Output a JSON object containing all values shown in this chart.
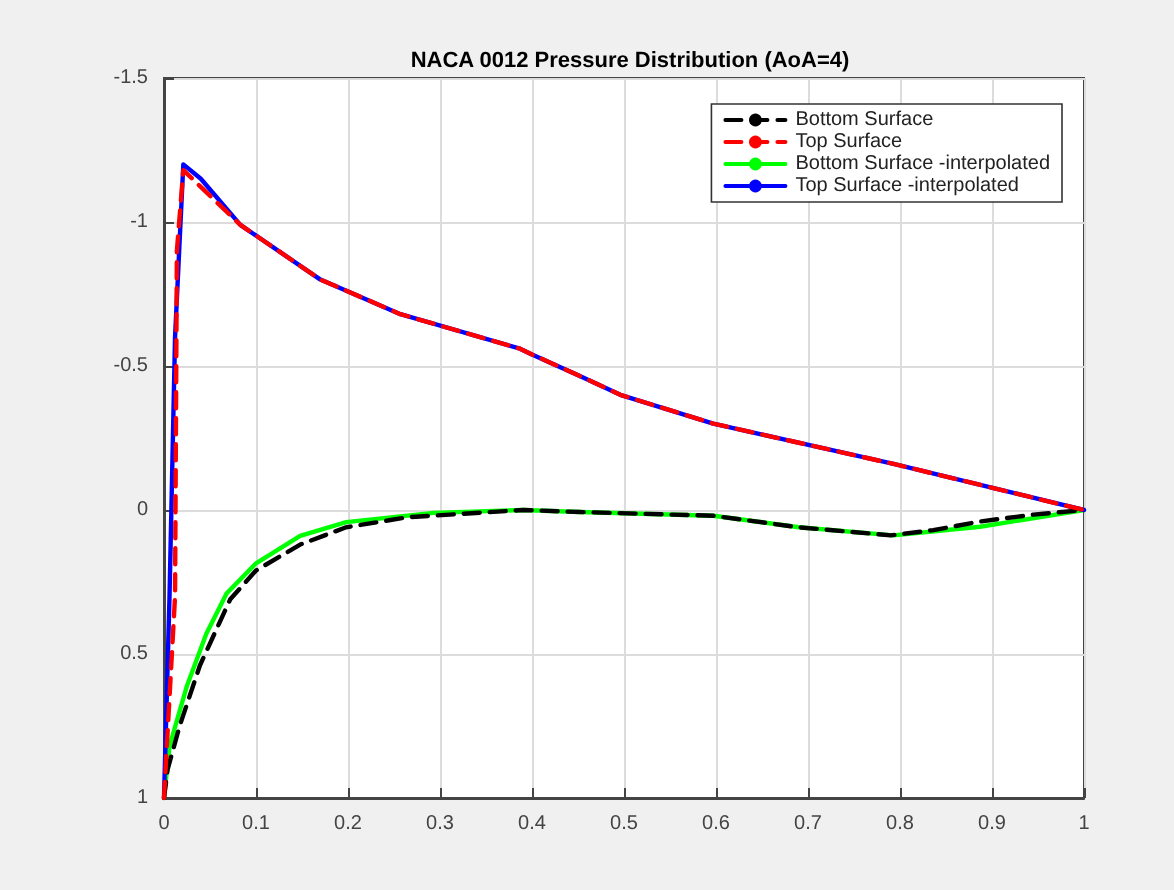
{
  "chart_data": {
    "type": "line",
    "title": "NACA 0012 Pressure Distribution (AoA=4)",
    "series": [
      {
        "name": "Bottom Surface",
        "color": "#000000",
        "line_style": "dashed",
        "x": [
          0,
          0.004,
          0.017,
          0.039,
          0.072,
          0.1,
          0.148,
          0.198,
          0.265,
          0.39,
          0.452,
          0.597,
          0.69,
          0.79,
          0.836,
          0.887,
          0.945,
          1
        ],
        "values": [
          1,
          0.9,
          0.75,
          0.54,
          0.31,
          0.21,
          0.12,
          0.06,
          0.025,
          0,
          0.007,
          0.02,
          0.06,
          0.088,
          0.07,
          0.04,
          0.016,
          0
        ]
      },
      {
        "name": "Top Surface",
        "color": "#ff0000",
        "line_style": "dashed",
        "x": [
          0,
          0.012,
          0.014,
          0.021,
          0.083,
          0.17,
          0.257,
          0.387,
          0.4,
          0.452,
          0.496,
          0.597,
          0.793,
          1
        ],
        "values": [
          1,
          0.3,
          -0.9,
          -1.18,
          -0.99,
          -0.8,
          -0.68,
          -0.56,
          -0.54,
          -0.465,
          -0.4,
          -0.3,
          -0.16,
          0
        ]
      },
      {
        "name": "Bottom Surface -interpolated",
        "color": "#00ff00",
        "line_style": "solid",
        "x": [
          0,
          0.006,
          0.025,
          0.046,
          0.068,
          0.1,
          0.148,
          0.198,
          0.293,
          0.39,
          0.452,
          0.597,
          0.69,
          0.793,
          0.887,
          1
        ],
        "values": [
          1,
          0.82,
          0.61,
          0.43,
          0.29,
          0.185,
          0.09,
          0.042,
          0.01,
          0,
          0.007,
          0.02,
          0.06,
          0.088,
          0.058,
          0
        ]
      },
      {
        "name": "Top Surface -interpolated",
        "color": "#0000ff",
        "line_style": "solid",
        "x": [
          0,
          0.006,
          0.012,
          0.021,
          0.04,
          0.083,
          0.17,
          0.257,
          0.387,
          0.4,
          0.452,
          0.496,
          0.597,
          0.793,
          1
        ],
        "values": [
          1,
          0.3,
          -0.6,
          -1.2,
          -1.15,
          -0.99,
          -0.8,
          -0.68,
          -0.56,
          -0.54,
          -0.465,
          -0.4,
          -0.3,
          -0.16,
          0
        ]
      }
    ],
    "xlim": [
      0,
      1
    ],
    "xticks": [
      0,
      0.1,
      0.2,
      0.3,
      0.4,
      0.5,
      0.6,
      0.7,
      0.8,
      0.9,
      1
    ],
    "ylim": [
      1,
      -1.5
    ],
    "yticks": [
      -1.5,
      -1,
      -0.5,
      0,
      0.5,
      1
    ],
    "grid": true,
    "legend": "top right",
    "marker": "none"
  }
}
